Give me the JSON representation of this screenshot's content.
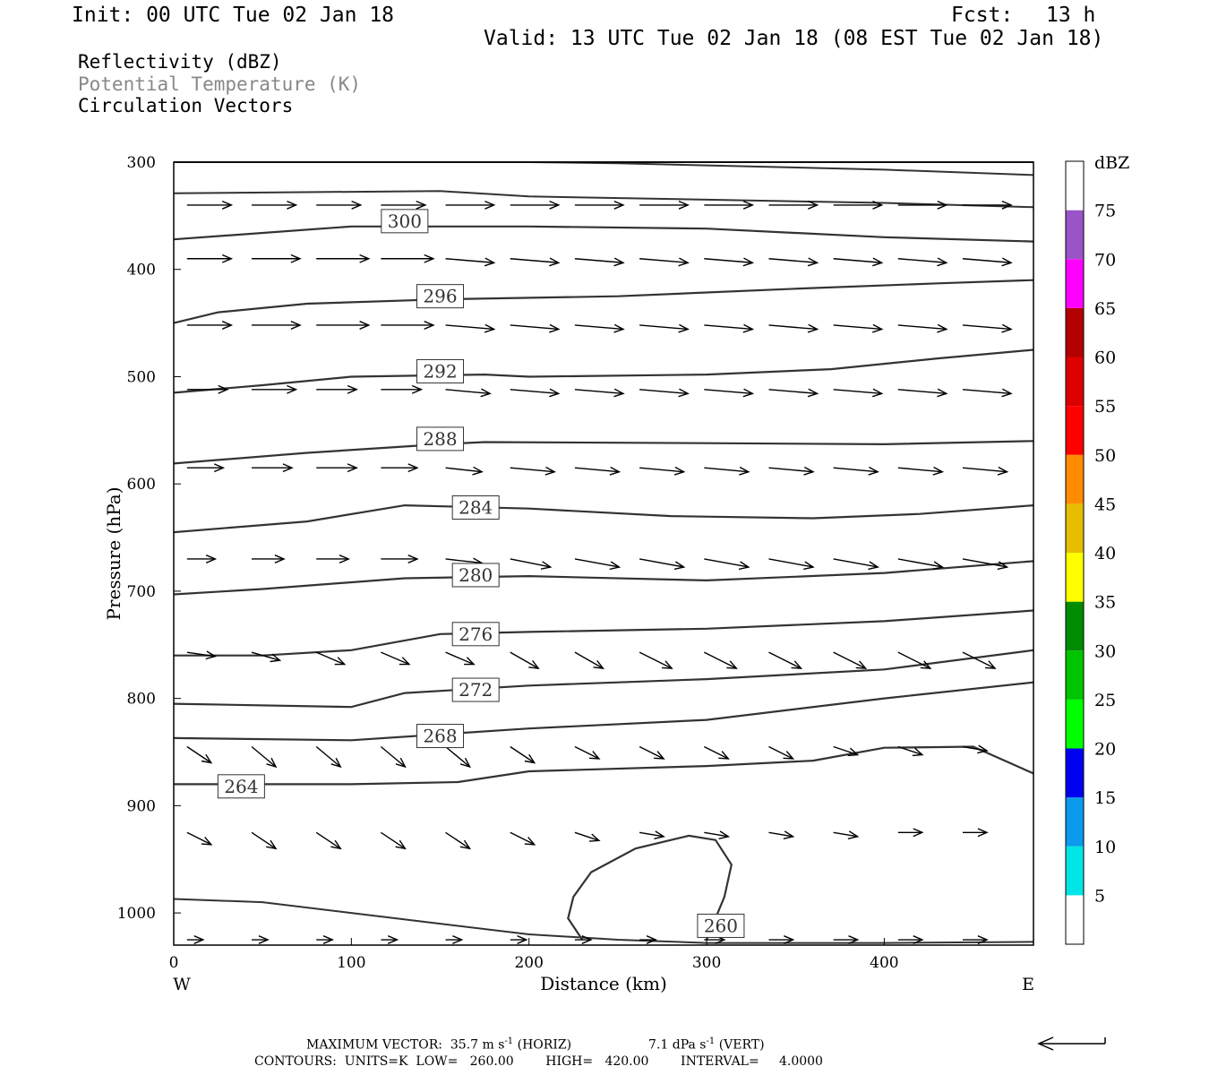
{
  "header": {
    "init": "Init: 00 UTC Tue 02 Jan 18",
    "fcst_label": "Fcst:",
    "fcst_value": "13 h",
    "valid": "Valid: 13 UTC Tue 02 Jan 18 (08 EST Tue 02 Jan 18)"
  },
  "variables": {
    "reflectivity": "Reflectivity (dBZ)",
    "theta": "Potential Temperature (K)",
    "vectors": "Circulation Vectors"
  },
  "footer": {
    "max_vector": "MAXIMUM VECTOR:  35.7 m s",
    "max_vector_horiz": "(HORIZ)",
    "max_vector_vert": "7.1 dPa s",
    "max_vector_vert_suffix": "(VERT)",
    "exp": "-1",
    "contours": "CONTOURS:  UNITS=K  LOW=   260.00        HIGH=   420.00        INTERVAL=     4.0000"
  },
  "chart_data": {
    "type": "line",
    "xlabel": "Distance (km)",
    "ylabel": "Pressure (hPa)",
    "xlim": [
      0,
      484
    ],
    "ylim": [
      300,
      1030
    ],
    "x_ticks": [
      "0",
      "100",
      "200",
      "300",
      "400"
    ],
    "y_ticks": [
      "300",
      "400",
      "500",
      "600",
      "700",
      "800",
      "900",
      "1000"
    ],
    "x_end_labels": {
      "left": "W",
      "right": "E"
    },
    "contour_color": "#333333",
    "series": [
      {
        "label": "300",
        "x": [
          0,
          100,
          200,
          300,
          400,
          484
        ],
        "y": [
          372,
          360,
          360,
          362,
          370,
          374
        ]
      },
      {
        "label": "296",
        "x": [
          0,
          25,
          75,
          150,
          250,
          350,
          430,
          484
        ],
        "y": [
          450,
          440,
          432,
          428,
          425,
          418,
          413,
          410
        ]
      },
      {
        "label": "292",
        "x": [
          0,
          50,
          100,
          175,
          200,
          300,
          370,
          430,
          484
        ],
        "y": [
          515,
          508,
          500,
          498,
          500,
          498,
          493,
          483,
          475
        ]
      },
      {
        "label": "288",
        "x": [
          0,
          75,
          150,
          175,
          300,
          400,
          484
        ],
        "y": [
          581,
          571,
          563,
          561,
          562,
          563,
          560
        ]
      },
      {
        "label": "284",
        "x": [
          0,
          75,
          130,
          200,
          280,
          360,
          420,
          484
        ],
        "y": [
          645,
          635,
          620,
          623,
          630,
          632,
          628,
          620
        ]
      },
      {
        "label": "280",
        "x": [
          0,
          50,
          130,
          200,
          300,
          400,
          484
        ],
        "y": [
          703,
          698,
          688,
          686,
          690,
          683,
          672
        ]
      },
      {
        "label": "276",
        "x": [
          0,
          50,
          100,
          150,
          200,
          300,
          400,
          484
        ],
        "y": [
          760,
          760,
          755,
          740,
          738,
          735,
          728,
          718
        ]
      },
      {
        "label": "272",
        "x": [
          0,
          100,
          130,
          200,
          300,
          400,
          484
        ],
        "y": [
          805,
          808,
          795,
          788,
          782,
          773,
          755
        ]
      },
      {
        "label": "268",
        "x": [
          0,
          100,
          200,
          300,
          400,
          484
        ],
        "y": [
          837,
          839,
          828,
          820,
          800,
          785
        ]
      },
      {
        "label": "264",
        "x": [
          0,
          100,
          160,
          200,
          300,
          360,
          400,
          450,
          484
        ],
        "y": [
          880,
          880,
          878,
          868,
          863,
          858,
          846,
          845,
          870
        ]
      },
      {
        "label": "260",
        "x": [
          230,
          222,
          225,
          235,
          260,
          290,
          305,
          314,
          310,
          300
        ],
        "y": [
          1025,
          1005,
          985,
          962,
          940,
          928,
          932,
          955,
          985,
          1025
        ]
      }
    ],
    "lower_lines": [
      {
        "x": [
          0,
          50,
          100,
          150,
          200,
          250,
          300,
          400,
          484
        ],
        "y": [
          987,
          990,
          1000,
          1010,
          1020,
          1025,
          1028,
          1028,
          1027
        ]
      },
      {
        "x": [
          0,
          484
        ],
        "y": [
          300,
          300
        ]
      },
      {
        "x": [
          0,
          150,
          200,
          300,
          400,
          484
        ],
        "y": [
          329,
          327,
          332,
          335,
          338,
          342
        ]
      },
      {
        "x": [
          200,
          250,
          300,
          400,
          484
        ],
        "y": [
          300,
          301,
          303,
          307,
          312
        ]
      }
    ],
    "vector_rows": [
      {
        "p": 340,
        "u": [
          0.55,
          0.55,
          0.55,
          0.55,
          0.6,
          0.6,
          0.6,
          0.6,
          0.6,
          0.6,
          0.6,
          0.6,
          0.6,
          0.6,
          0.6
        ],
        "w": [
          0,
          0,
          0,
          0,
          0,
          0,
          0,
          0,
          0,
          0,
          0,
          0,
          0,
          0,
          0
        ]
      },
      {
        "p": 390,
        "u": [
          0.55,
          0.6,
          0.65,
          0.65,
          0.6,
          0.6,
          0.6,
          0.6,
          0.6,
          0.6,
          0.6,
          0.6,
          0.6,
          0.6,
          0.6
        ],
        "w": [
          0,
          0,
          0,
          0,
          0.05,
          0.05,
          0.05,
          0.05,
          0.05,
          0.05,
          0.05,
          0.05,
          0.05,
          0.05,
          0.05
        ]
      },
      {
        "p": 452,
        "u": [
          0.55,
          0.6,
          0.65,
          0.65,
          0.6,
          0.6,
          0.6,
          0.6,
          0.6,
          0.6,
          0.6,
          0.6,
          0.6,
          0.6,
          0.6
        ],
        "w": [
          0,
          0,
          0,
          0,
          0.05,
          0.05,
          0.05,
          0.05,
          0.05,
          0.05,
          0.05,
          0.05,
          0.05,
          0.05,
          0.05
        ]
      },
      {
        "p": 512,
        "u": [
          0.5,
          0.55,
          0.5,
          0.5,
          0.55,
          0.6,
          0.6,
          0.6,
          0.6,
          0.6,
          0.6,
          0.6,
          0.6,
          0.6,
          0.6
        ],
        "w": [
          0,
          0,
          0,
          0,
          0.05,
          0.05,
          0.05,
          0.05,
          0.05,
          0.05,
          0.05,
          0.05,
          0.05,
          0.05,
          0.05
        ]
      },
      {
        "p": 585,
        "u": [
          0.45,
          0.5,
          0.5,
          0.45,
          0.45,
          0.55,
          0.55,
          0.55,
          0.55,
          0.55,
          0.55,
          0.55,
          0.55,
          0.55,
          0.55
        ],
        "w": [
          0,
          0,
          0,
          0,
          0.05,
          0.05,
          0.05,
          0.05,
          0.05,
          0.05,
          0.05,
          0.05,
          0.05,
          0.05,
          0.05
        ]
      },
      {
        "p": 670,
        "u": [
          0.35,
          0.4,
          0.4,
          0.45,
          0.45,
          0.5,
          0.55,
          0.55,
          0.55,
          0.55,
          0.55,
          0.55,
          0.55,
          0.55,
          0.55
        ],
        "w": [
          0,
          0,
          0,
          0,
          0.05,
          0.1,
          0.1,
          0.1,
          0.1,
          0.1,
          0.1,
          0.1,
          0.1,
          0.1,
          0.1
        ]
      },
      {
        "p": 757,
        "u": [
          0.35,
          0.35,
          0.35,
          0.35,
          0.35,
          0.35,
          0.35,
          0.4,
          0.4,
          0.4,
          0.4,
          0.4,
          0.4,
          0.4,
          0.4
        ],
        "w": [
          0.05,
          0.1,
          0.15,
          0.15,
          0.15,
          0.2,
          0.2,
          0.2,
          0.2,
          0.2,
          0.2,
          0.2,
          0.2,
          0.2,
          0.2
        ]
      },
      {
        "p": 845,
        "u": [
          0.3,
          0.3,
          0.3,
          0.3,
          0.3,
          0.3,
          0.3,
          0.3,
          0.3,
          0.3,
          0.3,
          0.3,
          0.3,
          0.3,
          0.3
        ],
        "w": [
          0.2,
          0.25,
          0.25,
          0.25,
          0.25,
          0.2,
          0.15,
          0.15,
          0.15,
          0.15,
          0.1,
          0.1,
          0.05,
          0.05,
          0.05
        ]
      },
      {
        "p": 925,
        "u": [
          0.3,
          0.3,
          0.3,
          0.3,
          0.3,
          0.3,
          0.3,
          0.3,
          0.3,
          0.3,
          0.3,
          0.3,
          0.3,
          0.3,
          0.3
        ],
        "w": [
          0.15,
          0.2,
          0.2,
          0.2,
          0.2,
          0.15,
          0.1,
          0.05,
          0.05,
          0.05,
          0.05,
          0,
          0,
          0,
          0
        ]
      },
      {
        "p": 1025,
        "u": [
          0.2,
          0.2,
          0.2,
          0.2,
          0.2,
          0.2,
          0.2,
          0.2,
          0.25,
          0.3,
          0.3,
          0.3,
          0.3,
          0.3,
          0.3
        ],
        "w": [
          0,
          0,
          0,
          0,
          0,
          0,
          0,
          0,
          0,
          0,
          0,
          0,
          0,
          0,
          0
        ]
      }
    ],
    "colorbar": {
      "title": "dBZ",
      "levels": [
        "5",
        "10",
        "15",
        "20",
        "25",
        "30",
        "35",
        "40",
        "45",
        "50",
        "55",
        "60",
        "65",
        "70",
        "75"
      ],
      "colors": [
        "#ffffff",
        "#00e6e6",
        "#0a9bec",
        "#0000f0",
        "#00ff00",
        "#00c400",
        "#008c00",
        "#ffff00",
        "#e6be00",
        "#ff8c00",
        "#ff0000",
        "#dc0000",
        "#b40000",
        "#ff00ff",
        "#9955c8",
        "#ffffff"
      ]
    }
  }
}
